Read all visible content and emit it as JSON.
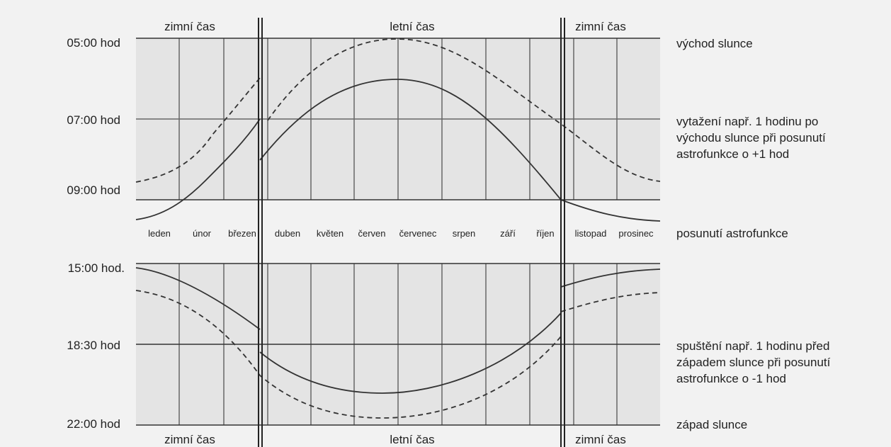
{
  "top": {
    "season_labels": [
      "zimní čas",
      "letní čas",
      "zimní čas"
    ],
    "y_labels": [
      "05:00 hod",
      "07:00 hod",
      "09:00 hod"
    ],
    "right_labels": {
      "sunrise": "východ slunce",
      "note_lines": [
        "vytažení např. 1 hodinu po",
        "východu slunce při posunutí",
        "astrofunkce o +1 hod"
      ]
    }
  },
  "months": [
    "leden",
    "únor",
    "březen",
    "duben",
    "květen",
    "červen",
    "červenec",
    "srpen",
    "září",
    "říjen",
    "listopad",
    "prosinec"
  ],
  "shift_label": "posunutí astrofunkce",
  "bottom": {
    "season_labels": [
      "zimní čas",
      "letní čas",
      "zimní čas"
    ],
    "y_labels": [
      "15:00 hod.",
      "18:30 hod",
      "22:00 hod"
    ],
    "right_labels": {
      "note_lines": [
        "spuštění  např. 1 hodinu před",
        "západem slunce při posunutí",
        "astrofunkce o -1 hod"
      ],
      "sunset": "západ slunce"
    }
  },
  "colors": {
    "background": "#f2f2f2",
    "panel": "#e4e4e4",
    "line": "#333333"
  }
}
